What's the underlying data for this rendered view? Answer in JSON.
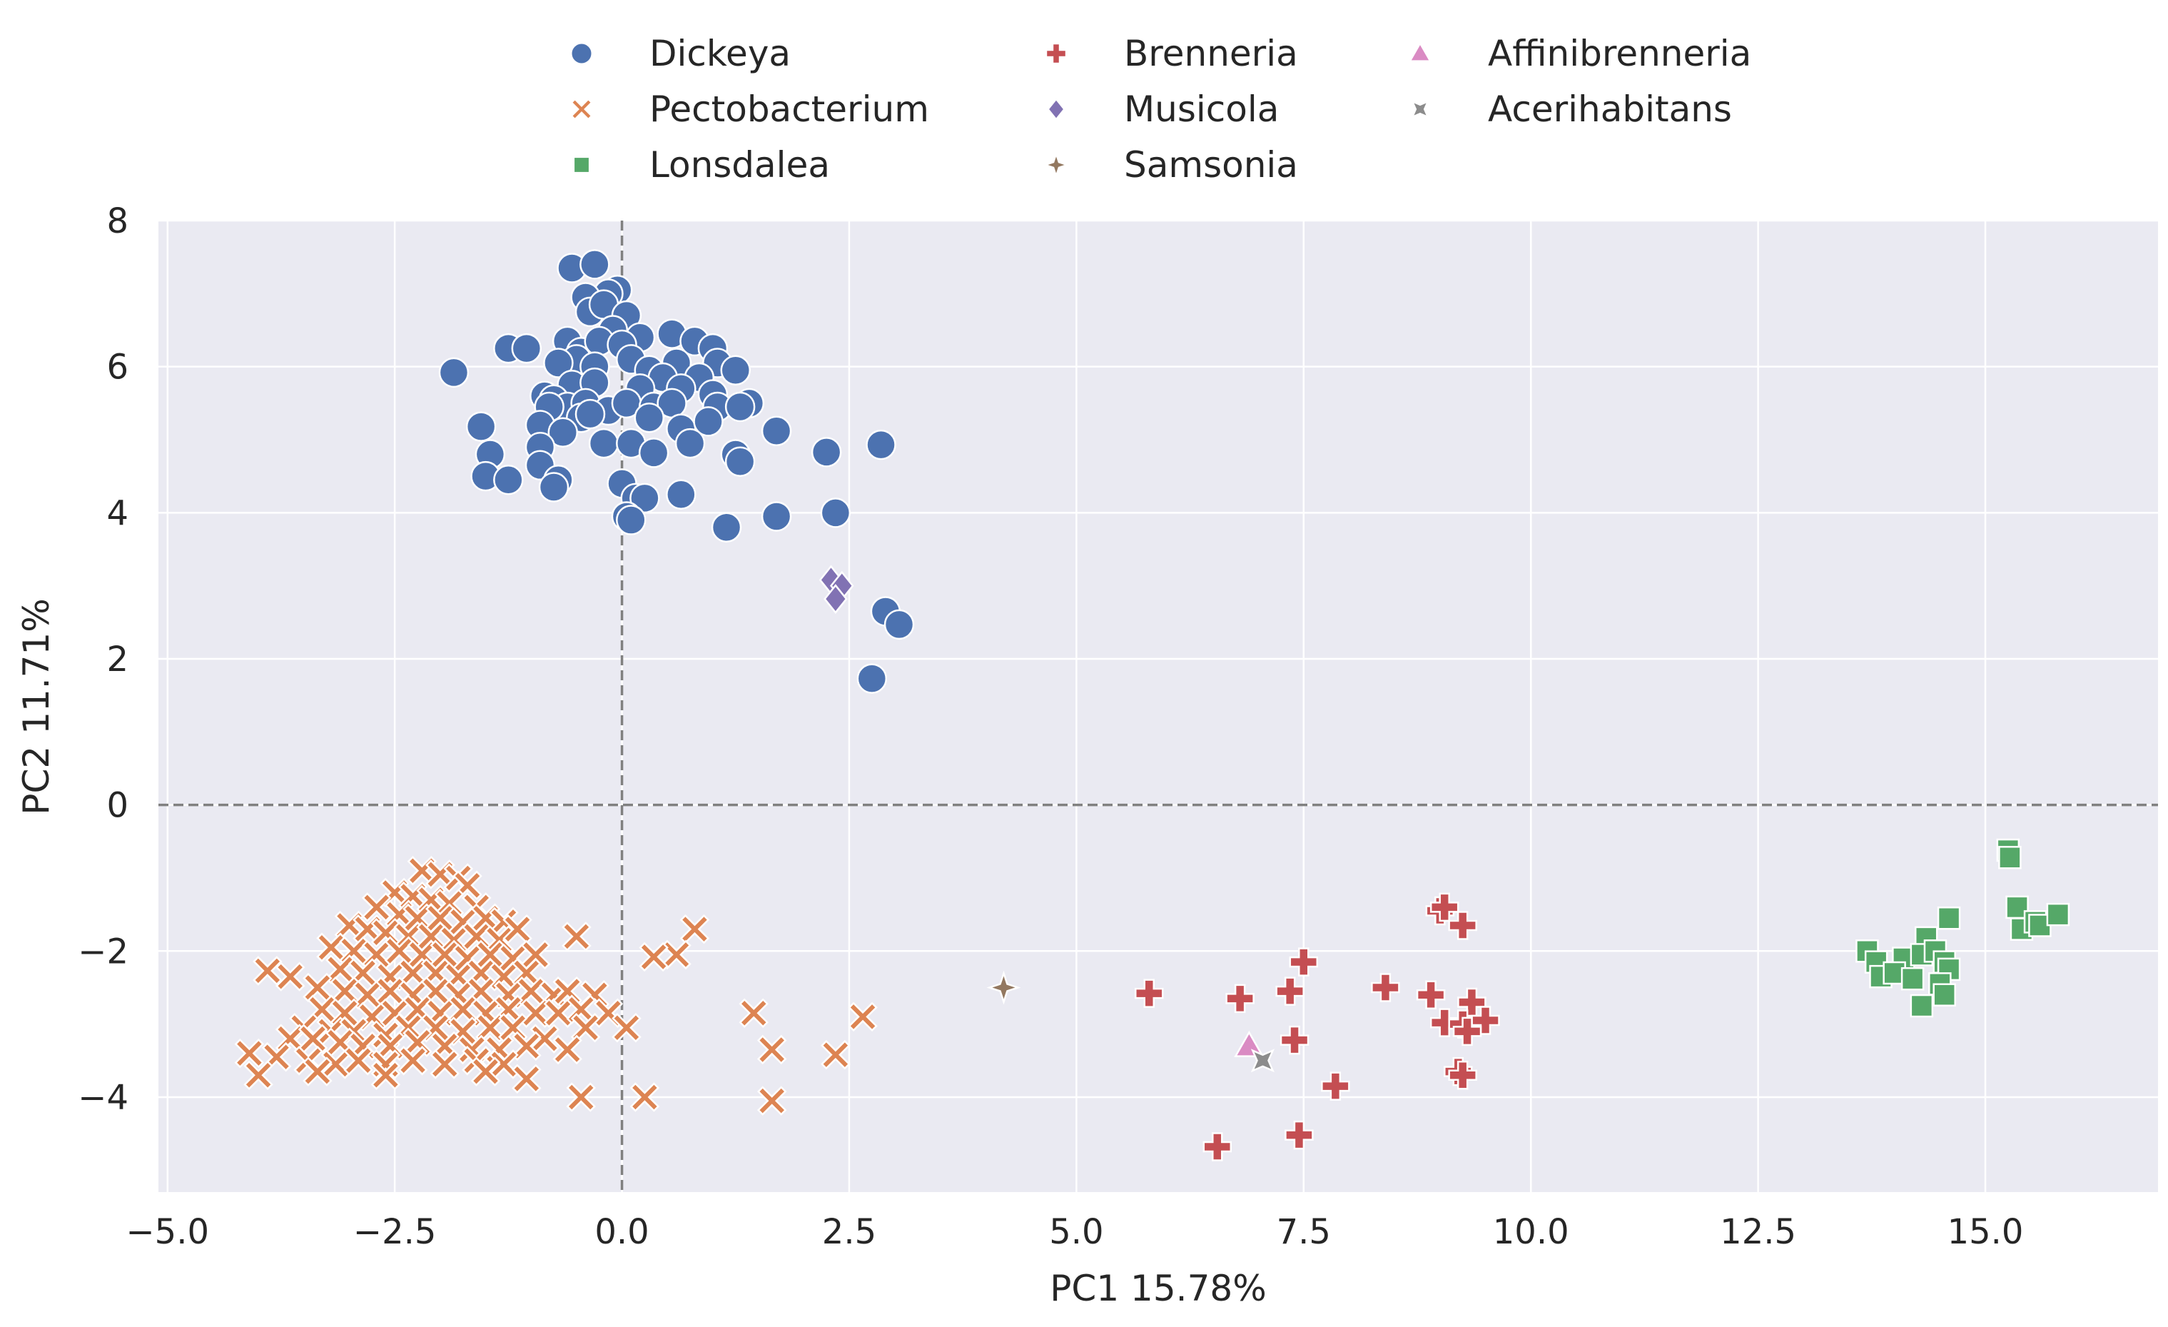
{
  "chart_data": {
    "type": "scatter",
    "xlabel": "PC1 15.78%",
    "ylabel": "PC2 11.71%",
    "xlim": [
      -5.1,
      16.9
    ],
    "ylim": [
      -5.3,
      8.0
    ],
    "xticks": [
      -5.0,
      -2.5,
      0.0,
      2.5,
      5.0,
      7.5,
      10.0,
      12.5,
      15.0
    ],
    "xtick_labels": [
      "−5.0",
      "−2.5",
      "0.0",
      "2.5",
      "5.0",
      "7.5",
      "10.0",
      "12.5",
      "15.0"
    ],
    "yticks": [
      8,
      6,
      4,
      2,
      0,
      -2,
      -4
    ],
    "ytick_labels": [
      "8",
      "6",
      "4",
      "2",
      "0",
      "−2",
      "−4"
    ],
    "grid": true,
    "reference_lines": {
      "x": 0,
      "y": 0,
      "style": "dashed"
    },
    "legend_position": "top-center",
    "series": [
      {
        "name": "Dickeya",
        "marker": "circle",
        "color": "#4c72b0",
        "points": [
          [
            -0.55,
            7.35
          ],
          [
            -0.3,
            7.4
          ],
          [
            -0.05,
            7.05
          ],
          [
            -0.15,
            7.0
          ],
          [
            -0.4,
            6.95
          ],
          [
            -0.35,
            6.75
          ],
          [
            -0.2,
            6.85
          ],
          [
            0.05,
            6.7
          ],
          [
            -0.1,
            6.5
          ],
          [
            0.2,
            6.4
          ],
          [
            0.55,
            6.45
          ],
          [
            0.8,
            6.35
          ],
          [
            1.0,
            6.25
          ],
          [
            -1.25,
            6.25
          ],
          [
            -1.05,
            6.25
          ],
          [
            -0.6,
            6.35
          ],
          [
            -0.45,
            6.2
          ],
          [
            -0.25,
            6.35
          ],
          [
            0.0,
            6.3
          ],
          [
            -0.5,
            6.1
          ],
          [
            -0.7,
            6.05
          ],
          [
            -1.85,
            5.92
          ],
          [
            -0.3,
            6.0
          ],
          [
            0.1,
            6.1
          ],
          [
            0.3,
            5.95
          ],
          [
            0.6,
            6.05
          ],
          [
            1.05,
            6.05
          ],
          [
            0.45,
            5.85
          ],
          [
            0.85,
            5.85
          ],
          [
            1.25,
            5.95
          ],
          [
            -0.55,
            5.75
          ],
          [
            -0.3,
            5.78
          ],
          [
            -0.85,
            5.6
          ],
          [
            -0.75,
            5.55
          ],
          [
            -0.6,
            5.45
          ],
          [
            -0.4,
            5.5
          ],
          [
            0.2,
            5.7
          ],
          [
            0.65,
            5.7
          ],
          [
            1.0,
            5.62
          ],
          [
            -0.8,
            5.45
          ],
          [
            -0.45,
            5.3
          ],
          [
            -0.15,
            5.4
          ],
          [
            0.05,
            5.5
          ],
          [
            0.35,
            5.45
          ],
          [
            0.55,
            5.5
          ],
          [
            1.05,
            5.45
          ],
          [
            1.4,
            5.5
          ],
          [
            1.3,
            5.45
          ],
          [
            -0.9,
            5.2
          ],
          [
            -0.65,
            5.1
          ],
          [
            -0.35,
            5.35
          ],
          [
            0.3,
            5.3
          ],
          [
            0.65,
            5.15
          ],
          [
            0.95,
            5.25
          ],
          [
            -1.55,
            5.18
          ],
          [
            1.7,
            5.12
          ],
          [
            -0.9,
            4.9
          ],
          [
            -0.2,
            4.95
          ],
          [
            0.1,
            4.95
          ],
          [
            0.35,
            4.82
          ],
          [
            0.75,
            4.95
          ],
          [
            1.25,
            4.8
          ],
          [
            1.3,
            4.7
          ],
          [
            2.25,
            4.83
          ],
          [
            2.85,
            4.93
          ],
          [
            -0.9,
            4.65
          ],
          [
            -0.7,
            4.45
          ],
          [
            -1.45,
            4.8
          ],
          [
            -1.5,
            4.5
          ],
          [
            -1.25,
            4.45
          ],
          [
            -0.75,
            4.35
          ],
          [
            0.0,
            4.4
          ],
          [
            0.15,
            4.2
          ],
          [
            0.25,
            4.2
          ],
          [
            0.65,
            4.25
          ],
          [
            0.05,
            3.95
          ],
          [
            0.1,
            3.9
          ],
          [
            1.15,
            3.8
          ],
          [
            1.7,
            3.95
          ],
          [
            2.35,
            4.0
          ],
          [
            2.9,
            2.65
          ],
          [
            3.05,
            2.47
          ],
          [
            2.75,
            1.73
          ]
        ]
      },
      {
        "name": "Pectobacterium",
        "marker": "x",
        "color": "#dd8452",
        "points": [
          [
            -2.2,
            -0.9
          ],
          [
            -2.0,
            -0.95
          ],
          [
            -1.8,
            -1.0
          ],
          [
            -1.7,
            -1.1
          ],
          [
            -2.5,
            -1.2
          ],
          [
            -2.3,
            -1.25
          ],
          [
            -2.1,
            -1.3
          ],
          [
            -1.9,
            -1.35
          ],
          [
            -1.6,
            -1.4
          ],
          [
            -2.7,
            -1.4
          ],
          [
            -2.45,
            -1.5
          ],
          [
            -2.25,
            -1.55
          ],
          [
            -2.0,
            -1.55
          ],
          [
            -1.75,
            -1.6
          ],
          [
            -1.5,
            -1.55
          ],
          [
            -1.3,
            -1.6
          ],
          [
            -3.0,
            -1.65
          ],
          [
            -2.8,
            -1.7
          ],
          [
            -2.6,
            -1.75
          ],
          [
            -2.35,
            -1.8
          ],
          [
            -2.1,
            -1.8
          ],
          [
            -1.85,
            -1.85
          ],
          [
            -1.6,
            -1.8
          ],
          [
            -1.35,
            -1.85
          ],
          [
            -1.15,
            -1.7
          ],
          [
            -0.5,
            -1.8
          ],
          [
            0.8,
            -1.7
          ],
          [
            0.6,
            -2.05
          ],
          [
            0.35,
            -2.08
          ],
          [
            -3.2,
            -1.95
          ],
          [
            -2.95,
            -2.0
          ],
          [
            -2.7,
            -2.05
          ],
          [
            -2.45,
            -2.0
          ],
          [
            -2.2,
            -2.05
          ],
          [
            -1.95,
            -2.05
          ],
          [
            -1.7,
            -2.1
          ],
          [
            -1.45,
            -2.05
          ],
          [
            -1.2,
            -2.1
          ],
          [
            -0.95,
            -2.05
          ],
          [
            -3.1,
            -2.25
          ],
          [
            -2.85,
            -2.3
          ],
          [
            -2.55,
            -2.35
          ],
          [
            -2.3,
            -2.3
          ],
          [
            -2.05,
            -2.3
          ],
          [
            -1.8,
            -2.35
          ],
          [
            -1.55,
            -2.3
          ],
          [
            -1.3,
            -2.35
          ],
          [
            -1.05,
            -2.3
          ],
          [
            -3.9,
            -2.27
          ],
          [
            -3.65,
            -2.35
          ],
          [
            -3.35,
            -2.5
          ],
          [
            -3.05,
            -2.55
          ],
          [
            -2.8,
            -2.6
          ],
          [
            -2.55,
            -2.55
          ],
          [
            -2.3,
            -2.6
          ],
          [
            -2.05,
            -2.55
          ],
          [
            -1.8,
            -2.6
          ],
          [
            -1.55,
            -2.55
          ],
          [
            -1.25,
            -2.6
          ],
          [
            -1.0,
            -2.55
          ],
          [
            -0.75,
            -2.6
          ],
          [
            -0.6,
            -2.55
          ],
          [
            -0.3,
            -2.6
          ],
          [
            -3.3,
            -2.8
          ],
          [
            -3.05,
            -2.85
          ],
          [
            -2.75,
            -2.9
          ],
          [
            -2.5,
            -2.85
          ],
          [
            -2.25,
            -2.8
          ],
          [
            -2.0,
            -2.85
          ],
          [
            -1.75,
            -2.8
          ],
          [
            -1.5,
            -2.85
          ],
          [
            -1.25,
            -2.8
          ],
          [
            -0.95,
            -2.85
          ],
          [
            -0.7,
            -2.85
          ],
          [
            -0.45,
            -2.8
          ],
          [
            -0.15,
            -2.85
          ],
          [
            1.45,
            -2.85
          ],
          [
            2.65,
            -2.9
          ],
          [
            -3.5,
            -3.05
          ],
          [
            -3.2,
            -3.1
          ],
          [
            -2.95,
            -3.1
          ],
          [
            -2.6,
            -3.15
          ],
          [
            -2.35,
            -3.05
          ],
          [
            -2.05,
            -3.05
          ],
          [
            -1.75,
            -3.1
          ],
          [
            -1.45,
            -3.05
          ],
          [
            -1.2,
            -3.05
          ],
          [
            -0.85,
            -3.2
          ],
          [
            -0.4,
            -3.05
          ],
          [
            0.05,
            -3.05
          ],
          [
            -3.65,
            -3.2
          ],
          [
            -3.4,
            -3.2
          ],
          [
            -3.1,
            -3.25
          ],
          [
            -2.85,
            -3.3
          ],
          [
            -2.55,
            -3.3
          ],
          [
            -2.25,
            -3.25
          ],
          [
            -1.95,
            -3.3
          ],
          [
            -1.65,
            -3.35
          ],
          [
            -1.35,
            -3.35
          ],
          [
            -1.05,
            -3.3
          ],
          [
            -0.6,
            -3.35
          ],
          [
            1.65,
            -3.35
          ],
          [
            -4.1,
            -3.4
          ],
          [
            -3.8,
            -3.45
          ],
          [
            -3.45,
            -3.5
          ],
          [
            -3.15,
            -3.55
          ],
          [
            -2.9,
            -3.5
          ],
          [
            -2.6,
            -3.55
          ],
          [
            -2.3,
            -3.5
          ],
          [
            -1.95,
            -3.55
          ],
          [
            -1.6,
            -3.5
          ],
          [
            -1.3,
            -3.55
          ],
          [
            2.35,
            -3.42
          ],
          [
            -4.0,
            -3.7
          ],
          [
            -3.35,
            -3.65
          ],
          [
            -2.6,
            -3.7
          ],
          [
            -1.5,
            -3.65
          ],
          [
            -1.05,
            -3.75
          ],
          [
            -0.45,
            -4.0
          ],
          [
            0.25,
            -4.0
          ],
          [
            1.65,
            -4.05
          ]
        ]
      },
      {
        "name": "Lonsdalea",
        "marker": "square",
        "color": "#55a868",
        "points": [
          [
            15.25,
            -0.62
          ],
          [
            15.27,
            -0.72
          ],
          [
            14.6,
            -1.55
          ],
          [
            15.35,
            -1.4
          ],
          [
            15.4,
            -1.7
          ],
          [
            15.55,
            -1.6
          ],
          [
            15.6,
            -1.65
          ],
          [
            15.8,
            -1.5
          ],
          [
            14.35,
            -1.82
          ],
          [
            13.7,
            -2.0
          ],
          [
            13.8,
            -2.15
          ],
          [
            14.1,
            -2.1
          ],
          [
            14.3,
            -2.05
          ],
          [
            14.45,
            -2.0
          ],
          [
            14.55,
            -2.15
          ],
          [
            14.6,
            -2.25
          ],
          [
            13.85,
            -2.35
          ],
          [
            14.0,
            -2.3
          ],
          [
            14.2,
            -2.38
          ],
          [
            14.5,
            -2.45
          ],
          [
            14.55,
            -2.6
          ],
          [
            14.3,
            -2.75
          ]
        ]
      },
      {
        "name": "Brenneria",
        "marker": "plus",
        "color": "#c44e52",
        "points": [
          [
            9.0,
            -1.45
          ],
          [
            9.05,
            -1.4
          ],
          [
            9.25,
            -1.65
          ],
          [
            7.5,
            -2.15
          ],
          [
            7.35,
            -2.55
          ],
          [
            8.4,
            -2.5
          ],
          [
            5.8,
            -2.58
          ],
          [
            6.8,
            -2.65
          ],
          [
            8.9,
            -2.6
          ],
          [
            9.35,
            -2.7
          ],
          [
            9.05,
            -2.98
          ],
          [
            9.25,
            -3.0
          ],
          [
            9.5,
            -2.95
          ],
          [
            9.3,
            -3.1
          ],
          [
            7.4,
            -3.22
          ],
          [
            9.2,
            -3.65
          ],
          [
            9.25,
            -3.7
          ],
          [
            7.85,
            -3.85
          ],
          [
            7.45,
            -4.52
          ],
          [
            6.55,
            -4.68
          ]
        ]
      },
      {
        "name": "Musicola",
        "marker": "diamond",
        "color": "#8172b3",
        "points": [
          [
            2.3,
            3.08
          ],
          [
            2.42,
            3.0
          ],
          [
            2.35,
            2.82
          ]
        ]
      },
      {
        "name": "Samsonia",
        "marker": "star4",
        "color": "#937860",
        "points": [
          [
            4.2,
            -2.5
          ]
        ]
      },
      {
        "name": "Affinibrenneria",
        "marker": "triangle",
        "color": "#da8bc3",
        "points": [
          [
            6.9,
            -3.3
          ]
        ]
      },
      {
        "name": "Acerihabitans",
        "marker": "star4x",
        "color": "#8c8c8c",
        "points": [
          [
            7.05,
            -3.5
          ]
        ]
      }
    ]
  }
}
